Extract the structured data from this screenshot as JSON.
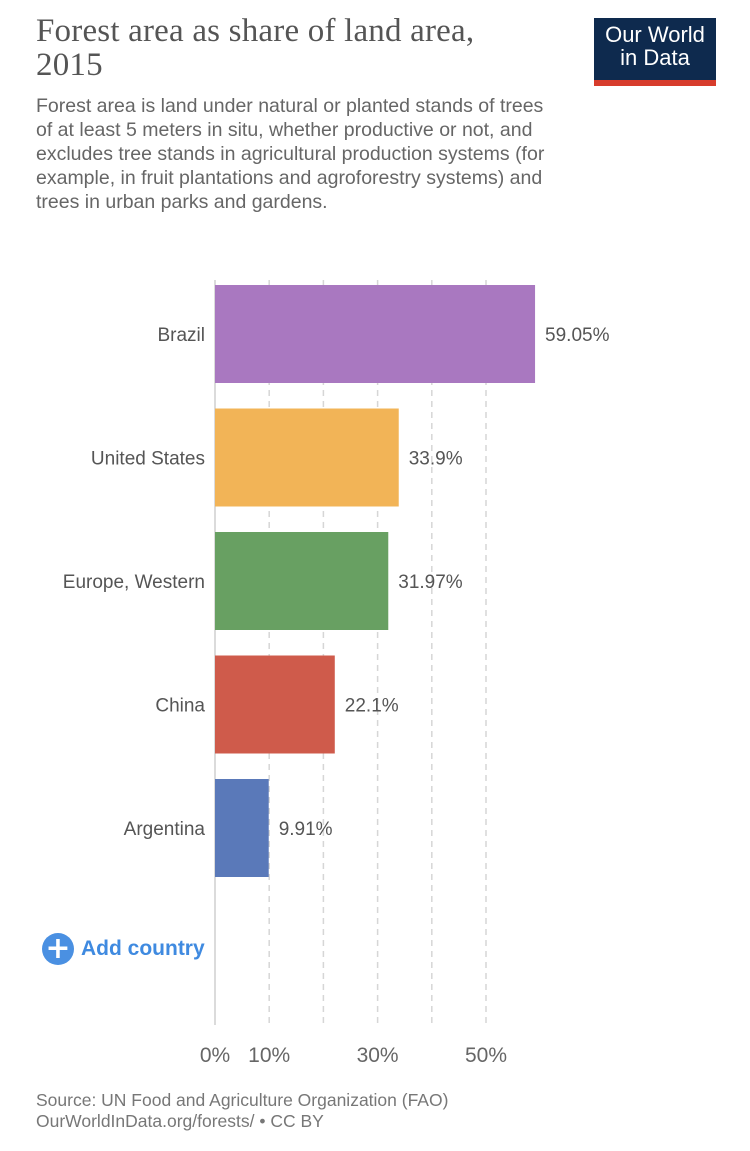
{
  "header": {
    "title": "Forest area as share of land area, 2015",
    "subtitle": "Forest area is land under natural or planted stands of trees of at least 5 meters in situ, whether productive or not, and excludes tree stands in agricultural production systems (for example, in fruit plantations and agroforestry systems) and trees in urban parks and gardens."
  },
  "logo": {
    "line1": "Our World",
    "line2": "in Data",
    "bg_color": "#0e2a4e",
    "accent_color": "#d73c2c"
  },
  "chart_data": {
    "type": "bar",
    "orientation": "horizontal",
    "title": "Forest area as share of land area, 2015",
    "categories": [
      "Brazil",
      "United States",
      "Europe, Western",
      "China",
      "Argentina"
    ],
    "values": [
      59.05,
      33.9,
      31.97,
      22.1,
      9.91
    ],
    "value_labels": [
      "59.05%",
      "33.9%",
      "31.97%",
      "22.1%",
      "9.91%"
    ],
    "colors": [
      "#a978c0",
      "#f2b457",
      "#68a062",
      "#cf5b4b",
      "#5a79b9"
    ],
    "xlim": [
      0,
      60
    ],
    "xticks": [
      0,
      10,
      20,
      30,
      40,
      50
    ],
    "xtick_labels": [
      "0%",
      "10%",
      "",
      "30%",
      "",
      "50%"
    ],
    "grid": true
  },
  "controls": {
    "add_icon": "plus-circle-icon",
    "add_country_label": "Add country"
  },
  "footer": {
    "source_line1": "Source: UN Food and Agriculture Organization (FAO)",
    "source_line2": "OurWorldInData.org/forests/ • CC BY"
  }
}
